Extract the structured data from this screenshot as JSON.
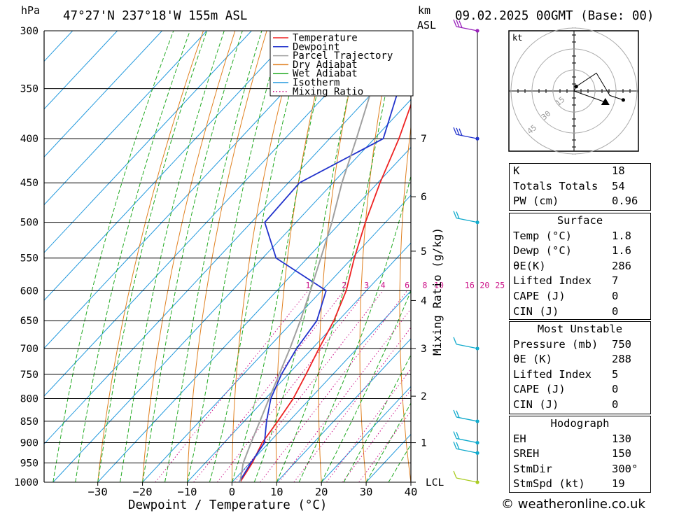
{
  "header": {
    "hpa_unit": "hPa",
    "location": "47°27'N  237°18'W  155m  ASL",
    "km_unit": "km",
    "asl_unit": "ASL",
    "datetime": "09.02.2025  00GMT  (Base: 00)"
  },
  "chart_data": {
    "type": "line",
    "title": "47°27'N  237°18'W  155m  ASL",
    "xlabel": "Dewpoint / Temperature (°C)",
    "ylabel": "hPa",
    "secondary_ylabel": "km ASL",
    "mixing_ratio_axis_label": "Mixing Ratio (g/kg)",
    "xlim": [
      -42,
      40
    ],
    "ylim": [
      1000,
      300
    ],
    "skew_per_100hpa": 4.7,
    "pressure_ticks": [
      300,
      350,
      400,
      450,
      500,
      550,
      600,
      650,
      700,
      750,
      800,
      850,
      900,
      950,
      1000
    ],
    "temperature_ticks": [
      -30,
      -20,
      -10,
      0,
      10,
      20,
      30,
      40
    ],
    "temperature_tick_labels": [
      "−30",
      "−20",
      "−10",
      "0",
      "10",
      "20",
      "30",
      "40"
    ],
    "km_ticks": [
      {
        "label": "7",
        "p": 400
      },
      {
        "label": "6",
        "p": 467
      },
      {
        "label": "5",
        "p": 540
      },
      {
        "label": "4",
        "p": 616
      },
      {
        "label": "3",
        "p": 700
      },
      {
        "label": "2",
        "p": 795
      },
      {
        "label": "1",
        "p": 900
      },
      {
        "label": "LCL",
        "p": 1000
      }
    ],
    "mixing_ratios": [
      1,
      2,
      3,
      4,
      6,
      8,
      10,
      16,
      20,
      25
    ],
    "mixing_ratio_labels": [
      "1",
      "2",
      "3",
      "4",
      "6",
      "8",
      "10",
      "16",
      "20",
      "25"
    ],
    "series": [
      {
        "name": "Temperature",
        "color": "#ee2222",
        "points": [
          [
            1000,
            1.8
          ],
          [
            950,
            0.5
          ],
          [
            900,
            -1.5
          ],
          [
            850,
            -2.5
          ],
          [
            800,
            -3.8
          ],
          [
            750,
            -6.0
          ],
          [
            700,
            -8.5
          ],
          [
            650,
            -11.0
          ],
          [
            600,
            -14.5
          ],
          [
            550,
            -19.5
          ],
          [
            500,
            -24.5
          ],
          [
            450,
            -29.5
          ],
          [
            400,
            -34.5
          ],
          [
            350,
            -41.0
          ],
          [
            300,
            -46.0
          ]
        ]
      },
      {
        "name": "Dewpoint",
        "color": "#2233cc",
        "points": [
          [
            1000,
            1.6
          ],
          [
            950,
            0.2
          ],
          [
            900,
            -1.0
          ],
          [
            850,
            -5.0
          ],
          [
            800,
            -8.8
          ],
          [
            750,
            -11.5
          ],
          [
            700,
            -13.5
          ],
          [
            650,
            -14.8
          ],
          [
            600,
            -19.0
          ],
          [
            550,
            -37.0
          ],
          [
            500,
            -47.0
          ],
          [
            450,
            -47.5
          ],
          [
            400,
            -38.0
          ],
          [
            350,
            -45.0
          ],
          [
            300,
            -65.0
          ]
        ]
      },
      {
        "name": "Parcel Trajectory",
        "color": "#a0a0a0",
        "points": [
          [
            1000,
            1.8
          ],
          [
            950,
            -1.5
          ],
          [
            900,
            -4.0
          ],
          [
            850,
            -6.5
          ],
          [
            800,
            -9.2
          ],
          [
            750,
            -12.0
          ],
          [
            700,
            -15.0
          ],
          [
            650,
            -18.5
          ],
          [
            600,
            -22.5
          ],
          [
            550,
            -27.0
          ],
          [
            500,
            -32.0
          ],
          [
            450,
            -38.0
          ],
          [
            400,
            -44.0
          ],
          [
            350,
            -51.0
          ],
          [
            300,
            -59.0
          ]
        ]
      }
    ],
    "legend": {
      "placement": "top-center",
      "entries": [
        {
          "label": "Temperature",
          "color": "#ee2222",
          "style": "solid"
        },
        {
          "label": "Dewpoint",
          "color": "#2233cc",
          "style": "solid"
        },
        {
          "label": "Parcel Trajectory",
          "color": "#a0a0a0",
          "style": "solid"
        },
        {
          "label": "Dry Adiabat",
          "color": "#e08020",
          "style": "solid"
        },
        {
          "label": "Wet Adiabat",
          "color": "#22aa22",
          "style": "solid"
        },
        {
          "label": "Isotherm",
          "color": "#2299dd",
          "style": "solid"
        },
        {
          "label": "Mixing Ratio",
          "color": "#cc1188",
          "style": "dotted"
        }
      ]
    },
    "wind_profile": [
      {
        "p": 300,
        "color": "#9922bb",
        "barbs": 3
      },
      {
        "p": 400,
        "color": "#2233cc",
        "barbs": 3
      },
      {
        "p": 500,
        "color": "#11aacc",
        "barbs": 2
      },
      {
        "p": 700,
        "color": "#11aacc",
        "barbs": 1
      },
      {
        "p": 850,
        "color": "#11aacc",
        "barbs": 2
      },
      {
        "p": 900,
        "color": "#11aacc",
        "barbs": 2
      },
      {
        "p": 925,
        "color": "#11aacc",
        "barbs": 2
      },
      {
        "p": 1000,
        "color": "#aacc22",
        "barbs": 1
      }
    ]
  },
  "hodograph": {
    "unit_label": "kt",
    "ring_labels": [
      "15",
      "30",
      "45"
    ],
    "trace": [
      [
        0,
        0
      ],
      [
        1,
        2
      ],
      [
        10,
        8
      ],
      [
        16,
        -2
      ],
      [
        22,
        -4
      ]
    ],
    "storm_motion": [
      14,
      -5
    ]
  },
  "indices": [
    {
      "label": "K",
      "value": "18"
    },
    {
      "label": "Totals Totals",
      "value": "54"
    },
    {
      "label": "PW (cm)",
      "value": "0.96"
    }
  ],
  "surface": {
    "title": "Surface",
    "rows": [
      {
        "label": "Temp (°C)",
        "value": "1.8"
      },
      {
        "label": "Dewp (°C)",
        "value": "1.6"
      },
      {
        "label": "θE(K)",
        "value": "286"
      },
      {
        "label": "Lifted Index",
        "value": "7"
      },
      {
        "label": "CAPE (J)",
        "value": "0"
      },
      {
        "label": "CIN (J)",
        "value": "0"
      }
    ]
  },
  "most_unstable": {
    "title": "Most Unstable",
    "rows": [
      {
        "label": "Pressure (mb)",
        "value": "750"
      },
      {
        "label": "θE (K)",
        "value": "288"
      },
      {
        "label": "Lifted Index",
        "value": "5"
      },
      {
        "label": "CAPE (J)",
        "value": "0"
      },
      {
        "label": "CIN (J)",
        "value": "0"
      }
    ]
  },
  "hodograph_table": {
    "title": "Hodograph",
    "rows": [
      {
        "label": "EH",
        "value": "130"
      },
      {
        "label": "SREH",
        "value": "150"
      },
      {
        "label": "StmDir",
        "value": "300°"
      },
      {
        "label": "StmSpd (kt)",
        "value": "19"
      }
    ]
  },
  "copyright": "© weatheronline.co.uk"
}
